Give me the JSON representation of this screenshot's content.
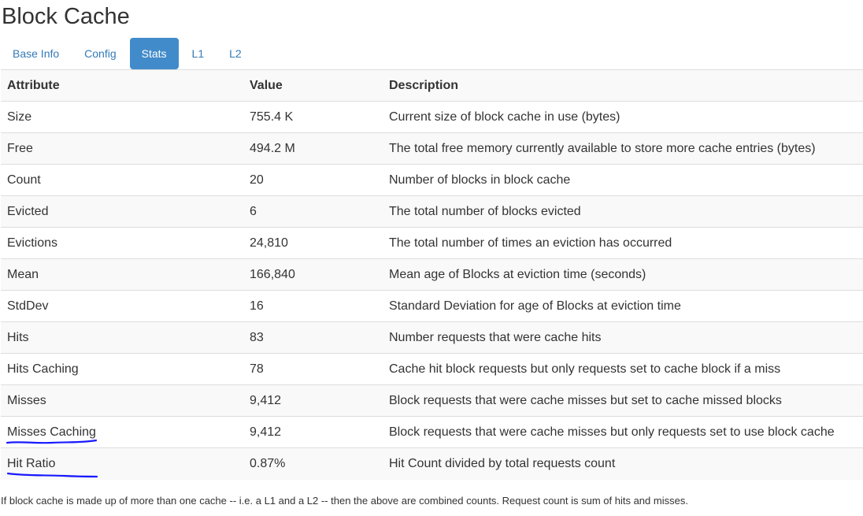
{
  "page": {
    "title": "Block Cache"
  },
  "tabs": [
    {
      "label": "Base Info",
      "active": false
    },
    {
      "label": "Config",
      "active": false
    },
    {
      "label": "Stats",
      "active": true
    },
    {
      "label": "L1",
      "active": false
    },
    {
      "label": "L2",
      "active": false
    }
  ],
  "colors": {
    "link": "#337ab7",
    "active_tab_bg": "#428bca",
    "annotation_ink": "#1a1aff"
  },
  "table": {
    "headers": [
      "Attribute",
      "Value",
      "Description"
    ],
    "rows": [
      [
        "Size",
        "755.4 K",
        "Current size of block cache in use (bytes)"
      ],
      [
        "Free",
        "494.2 M",
        "The total free memory currently available to store more cache entries (bytes)"
      ],
      [
        "Count",
        "20",
        "Number of blocks in block cache"
      ],
      [
        "Evicted",
        "6",
        "The total number of blocks evicted"
      ],
      [
        "Evictions",
        "24,810",
        "The total number of times an eviction has occurred"
      ],
      [
        "Mean",
        "166,840",
        "Mean age of Blocks at eviction time (seconds)"
      ],
      [
        "StdDev",
        "16",
        "Standard Deviation for age of Blocks at eviction time"
      ],
      [
        "Hits",
        "83",
        "Number requests that were cache hits"
      ],
      [
        "Hits Caching",
        "78",
        "Cache hit block requests but only requests set to cache block if a miss"
      ],
      [
        "Misses",
        "9,412",
        "Block requests that were cache misses but set to cache missed blocks"
      ],
      [
        "Misses Caching",
        "9,412",
        "Block requests that were cache misses but only requests set to use block cache"
      ],
      [
        "Hit Ratio",
        "0.87%",
        "Hit Count divided by total requests count"
      ]
    ]
  },
  "annotations": {
    "underlined_rows": [
      "Misses Caching",
      "Hit Ratio"
    ]
  },
  "footnote": "If block cache is made up of more than one cache -- i.e. a L1 and a L2 -- then the above are combined counts. Request count is sum of hits and misses."
}
